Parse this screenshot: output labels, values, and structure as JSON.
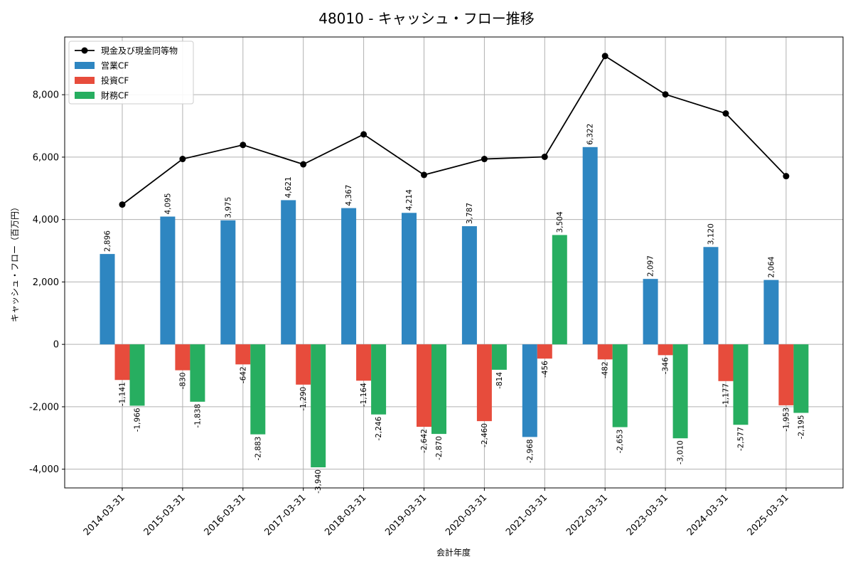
{
  "chart_data": {
    "type": "bar",
    "title": "48010 - キャッシュ・フロー推移",
    "xlabel": "会計年度",
    "ylabel": "キャッシュ・フロー（百万円）",
    "categories": [
      "2014-03-31",
      "2015-03-31",
      "2016-03-31",
      "2017-03-31",
      "2018-03-31",
      "2019-03-31",
      "2020-03-31",
      "2021-03-31",
      "2022-03-31",
      "2023-03-31",
      "2024-03-31",
      "2025-03-31"
    ],
    "series": [
      {
        "name": "営業CF",
        "type": "bar",
        "color": "#2e86c1",
        "values": [
          2896,
          4095,
          3975,
          4621,
          4367,
          4214,
          3787,
          -2968,
          6322,
          2097,
          3120,
          2064
        ],
        "labels": [
          "2,896",
          "4,095",
          "3,975",
          "4,621",
          "4,367",
          "4,214",
          "3,787",
          "-2,968",
          "6,322",
          "2,097",
          "3,120",
          "2,064"
        ]
      },
      {
        "name": "投資CF",
        "type": "bar",
        "color": "#e74c3c",
        "values": [
          -1141,
          -830,
          -642,
          -1290,
          -1164,
          -2642,
          -2460,
          -456,
          -482,
          -346,
          -1177,
          -1953
        ],
        "labels": [
          "-1,141",
          "-830",
          "-642",
          "-1,290",
          "-1,164",
          "-2,642",
          "-2,460",
          "-456",
          "-482",
          "-346",
          "-1,177",
          "-1,953"
        ]
      },
      {
        "name": "財務CF",
        "type": "bar",
        "color": "#27ae60",
        "values": [
          -1966,
          -1838,
          -2883,
          -3940,
          -2246,
          -2870,
          -814,
          3504,
          -2653,
          -3010,
          -2577,
          -2195
        ],
        "labels": [
          "-1,966",
          "-1,838",
          "-2,883",
          "-3,940",
          "-2,246",
          "-2,870",
          "-814",
          "3,504",
          "-2,653",
          "-3,010",
          "-2,577",
          "-2,195"
        ]
      },
      {
        "name": "現金及び現金同等物",
        "type": "line",
        "color": "#000000",
        "values": [
          4480,
          5940,
          6390,
          5770,
          6730,
          5430,
          5940,
          6010,
          9240,
          8010,
          7400,
          5390
        ]
      }
    ],
    "ylim": [
      -4600,
      9850
    ],
    "yticks": [
      -4000,
      -2000,
      0,
      2000,
      4000,
      6000,
      8000
    ],
    "ytick_labels": [
      "-4,000",
      "-2,000",
      "0",
      "2,000",
      "4,000",
      "6,000",
      "8,000"
    ],
    "grid": true,
    "legend_position": "upper-left"
  }
}
